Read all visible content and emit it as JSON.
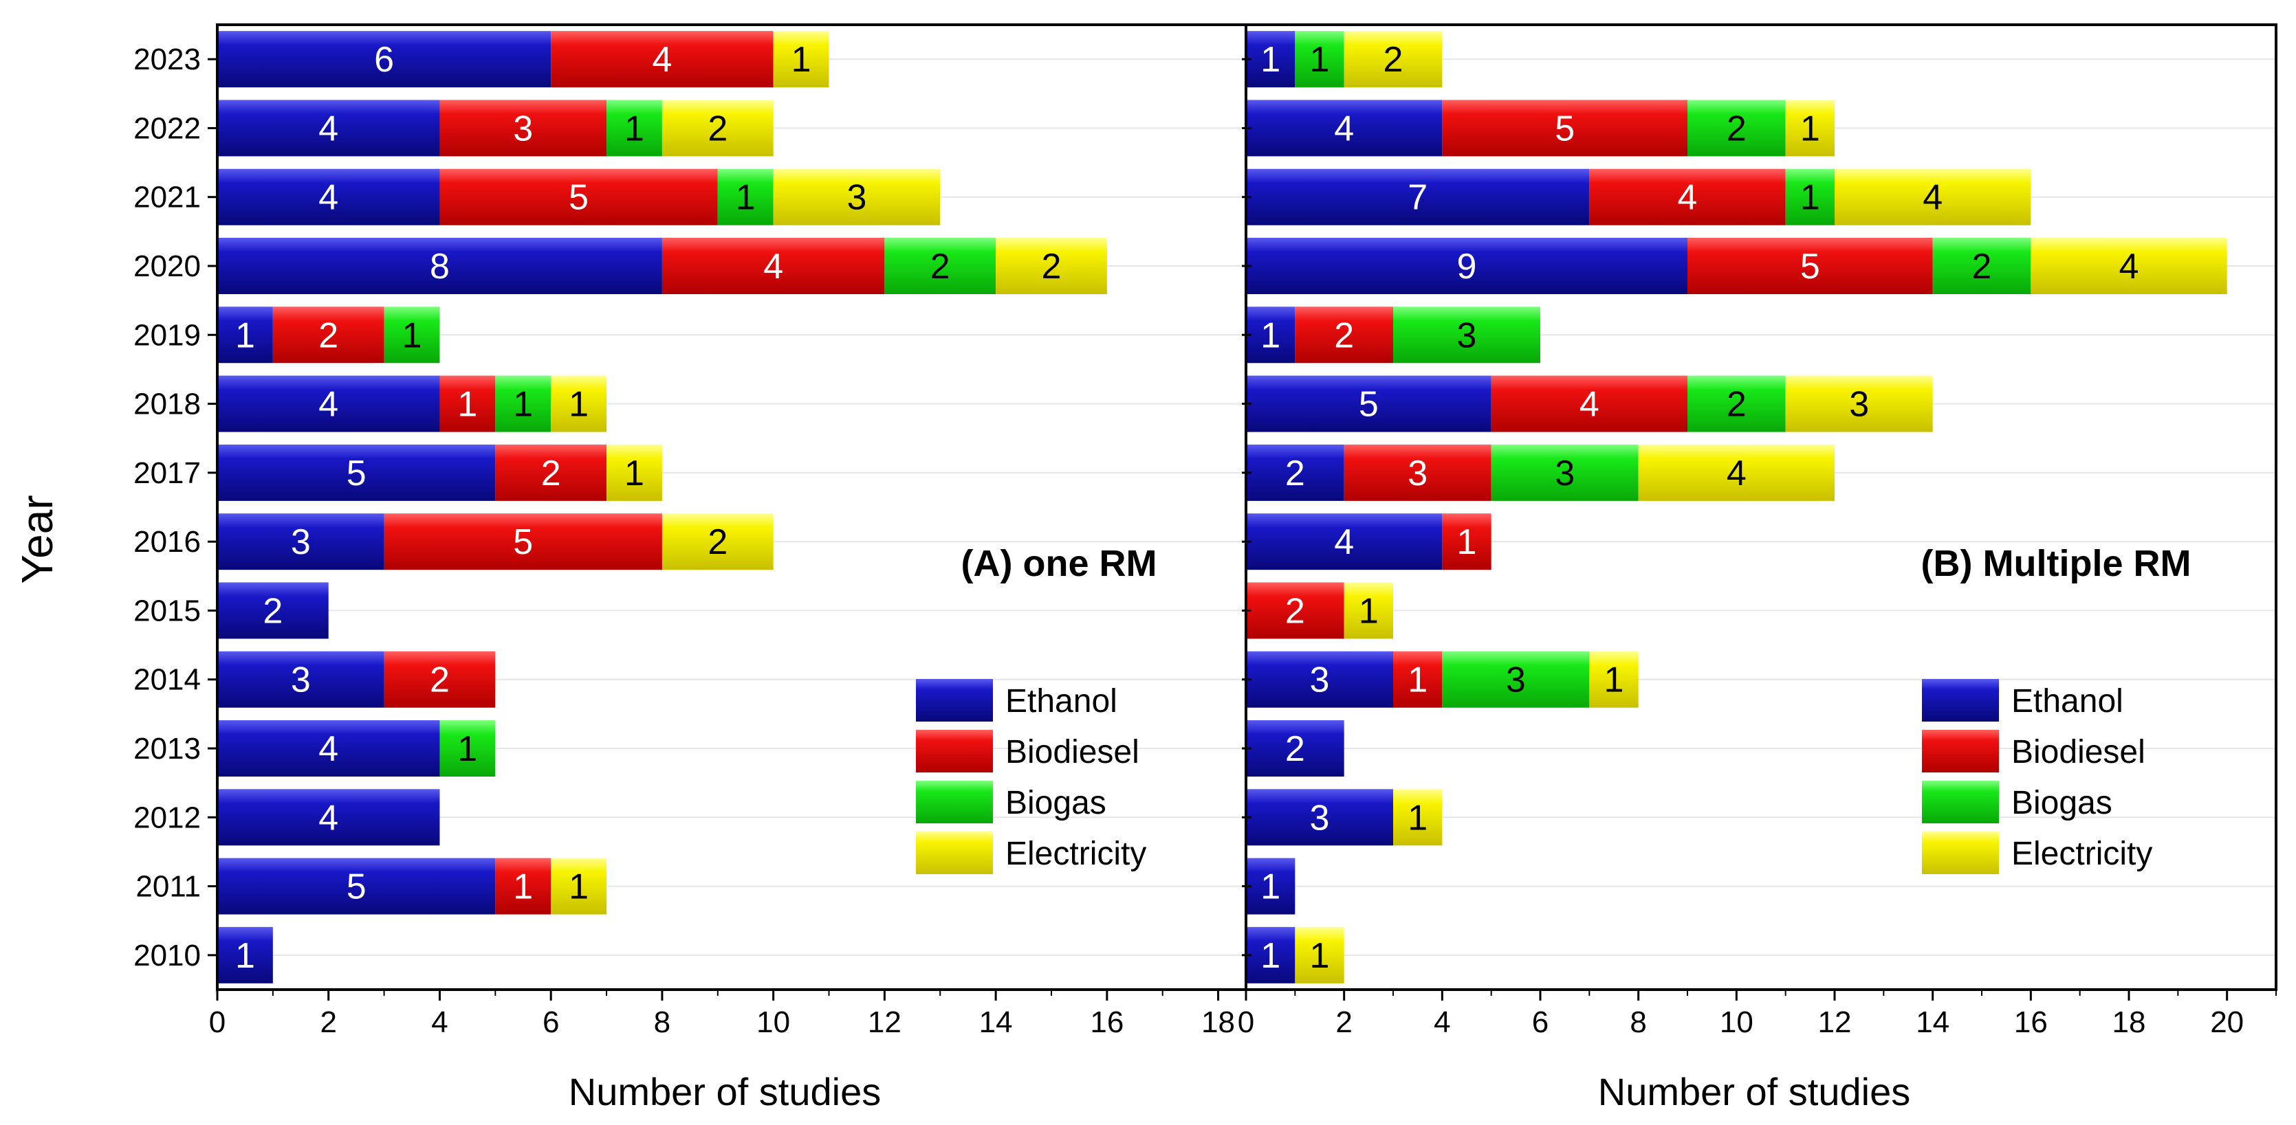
{
  "chart_data": {
    "type": "bar",
    "orientation": "horizontal",
    "stacked": true,
    "ylabel": "Year",
    "categories": [
      "2023",
      "2022",
      "2021",
      "2020",
      "2019",
      "2018",
      "2017",
      "2016",
      "2015",
      "2014",
      "2013",
      "2012",
      "2011",
      "2010"
    ],
    "colors": {
      "Ethanol": "#1010b4",
      "Biodiesel": "#f01010",
      "Biogas": "#10e010",
      "Electricity": "#f5f000"
    },
    "label_colors": {
      "Ethanol": "#ffffff",
      "Biodiesel": "#ffffff",
      "Biogas": "#000000",
      "Electricity": "#000000"
    },
    "panels": [
      {
        "title": "(A) one RM",
        "xlabel": "Number of studies",
        "xlim": [
          0,
          18.5
        ],
        "xticks": [
          0,
          2,
          4,
          6,
          8,
          10,
          12,
          14,
          16,
          18
        ],
        "legend": [
          "Ethanol",
          "Biodiesel",
          "Biogas",
          "Electricity"
        ],
        "series": [
          {
            "name": "Ethanol",
            "values": [
              6,
              4,
              4,
              8,
              1,
              4,
              5,
              3,
              2,
              3,
              4,
              4,
              5,
              1
            ]
          },
          {
            "name": "Biodiesel",
            "values": [
              4,
              3,
              5,
              4,
              2,
              1,
              2,
              5,
              0,
              2,
              0,
              0,
              1,
              0
            ]
          },
          {
            "name": "Biogas",
            "values": [
              0,
              1,
              1,
              2,
              1,
              1,
              0,
              0,
              0,
              0,
              1,
              0,
              0,
              0
            ]
          },
          {
            "name": "Electricity",
            "values": [
              1,
              2,
              3,
              2,
              0,
              1,
              1,
              2,
              0,
              0,
              0,
              0,
              1,
              0
            ]
          }
        ]
      },
      {
        "title": "(B) Multiple RM",
        "xlabel": "Number of studies",
        "xlim": [
          0,
          21
        ],
        "xticks": [
          0,
          2,
          4,
          6,
          8,
          10,
          12,
          14,
          16,
          18,
          20
        ],
        "legend": [
          "Ethanol",
          "Biodiesel",
          "Biogas",
          "Electricity"
        ],
        "series": [
          {
            "name": "Ethanol",
            "values": [
              1,
              4,
              7,
              9,
              1,
              5,
              2,
              4,
              0,
              3,
              2,
              3,
              1,
              1
            ]
          },
          {
            "name": "Biodiesel",
            "values": [
              0,
              5,
              4,
              5,
              2,
              4,
              3,
              1,
              2,
              1,
              0,
              0,
              0,
              0
            ]
          },
          {
            "name": "Biogas",
            "values": [
              1,
              2,
              1,
              2,
              3,
              2,
              3,
              0,
              0,
              3,
              0,
              0,
              0,
              0
            ]
          },
          {
            "name": "Electricity",
            "values": [
              2,
              1,
              4,
              4,
              0,
              3,
              4,
              0,
              1,
              1,
              0,
              1,
              0,
              1
            ]
          }
        ]
      }
    ]
  }
}
